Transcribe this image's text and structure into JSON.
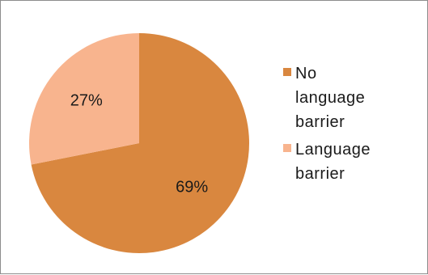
{
  "chart_data": {
    "type": "pie",
    "title": "",
    "slices": [
      {
        "label": "No language barrier",
        "value": 69,
        "value_label": "69%",
        "color": "#D9873F"
      },
      {
        "label": "Language barrier",
        "value": 27,
        "value_label": "27%",
        "color": "#F8B48E"
      }
    ],
    "legend_position": "right"
  }
}
